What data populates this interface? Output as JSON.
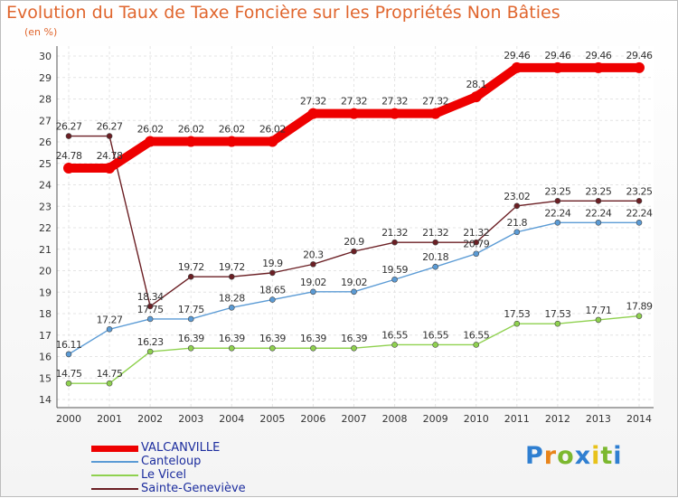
{
  "header": {
    "title": "Evolution du Taux de Taxe Foncière sur les Propriétés Non Bâties",
    "unit": "(en %)"
  },
  "logo": {
    "text": "Proxiti",
    "colors": [
      "#2f7fd1",
      "#e8841a",
      "#7cb82f",
      "#2f7fd1",
      "#e8c21a",
      "#7cb82f",
      "#2f7fd1"
    ]
  },
  "chart_data": {
    "type": "line",
    "x": [
      2000,
      2001,
      2002,
      2003,
      2004,
      2005,
      2006,
      2007,
      2008,
      2009,
      2010,
      2011,
      2012,
      2013,
      2014
    ],
    "ylim": [
      14,
      30
    ],
    "yticks": [
      14,
      15,
      16,
      17,
      18,
      19,
      20,
      21,
      22,
      23,
      24,
      25,
      26,
      27,
      28,
      29,
      30
    ],
    "grid": true,
    "legend_position": "bottom-left",
    "series": [
      {
        "name": "Sainte-Geneviève",
        "color": "#6b1f24",
        "values": [
          26.27,
          26.27,
          18.34,
          19.72,
          19.72,
          19.9,
          20.3,
          20.9,
          21.32,
          21.32,
          21.32,
          23.02,
          23.25,
          23.25,
          23.25
        ],
        "labels": [
          "26.27",
          "26.27",
          "18.34",
          "19.72",
          "19.72",
          "19.9",
          "20.3",
          "20.9",
          "21.32",
          "21.32",
          "21.32",
          "23.02",
          "23.25",
          "23.25",
          "23.25"
        ]
      },
      {
        "name": "Canteloup",
        "color": "#5b9bd5",
        "values": [
          16.11,
          17.27,
          17.75,
          17.75,
          18.28,
          18.65,
          19.02,
          19.02,
          19.59,
          20.18,
          20.79,
          21.8,
          22.24,
          22.24,
          22.24
        ],
        "labels": [
          "16.11",
          "17.27",
          "17.75",
          "17.75",
          "18.28",
          "18.65",
          "19.02",
          "19.02",
          "19.59",
          "20.18",
          "20.79",
          "21.8",
          "22.24",
          "22.24",
          "22.24"
        ]
      },
      {
        "name": "Le Vicel",
        "color": "#8fd14f",
        "values": [
          14.75,
          14.75,
          16.23,
          16.39,
          16.39,
          16.39,
          16.39,
          16.39,
          16.55,
          16.55,
          16.55,
          17.53,
          17.53,
          17.71,
          17.89
        ],
        "labels": [
          "14.75",
          "14.75",
          "16.23",
          "16.39",
          "16.39",
          "16.39",
          "16.39",
          "16.39",
          "16.55",
          "16.55",
          "16.55",
          "17.53",
          "17.53",
          "17.71",
          "17.89"
        ]
      },
      {
        "name": "VALCANVILLE",
        "color": "#ee0000",
        "values": [
          24.78,
          24.78,
          26.02,
          26.02,
          26.02,
          26.02,
          27.32,
          27.32,
          27.32,
          27.32,
          28.1,
          29.46,
          29.46,
          29.46,
          29.46
        ],
        "labels": [
          "24.78",
          "24.78",
          "26.02",
          "26.02",
          "26.02",
          "26.02",
          "27.32",
          "27.32",
          "27.32",
          "27.32",
          "28.1",
          "29.46",
          "29.46",
          "29.46",
          "29.46"
        ]
      }
    ],
    "legend": [
      "VALCANVILLE",
      "Canteloup",
      "Le Vicel",
      "Sainte-Geneviève"
    ]
  }
}
